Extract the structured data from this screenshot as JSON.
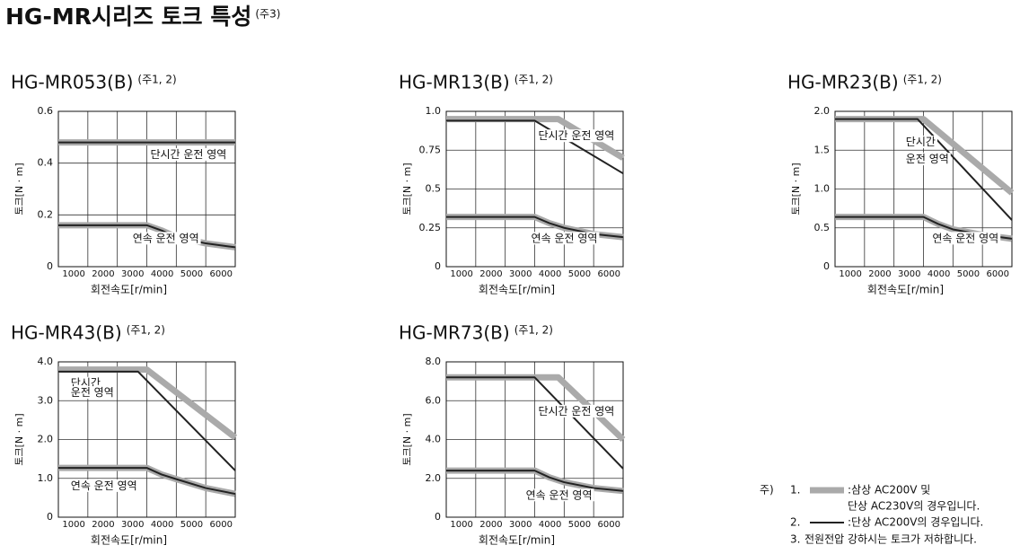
{
  "header": {
    "title": "HG-MR시리즈 토크 특성",
    "title_note": "(주3)"
  },
  "chart_data": [
    {
      "type": "line",
      "title": "HG-MR053(B)",
      "title_note": "(주1, 2)",
      "xlabel": "회전속도[r/min]",
      "ylabel": "토크[N · m]",
      "xlim": [
        0,
        6000
      ],
      "xticks": [
        1000,
        2000,
        3000,
        4000,
        5000,
        6000
      ],
      "ylim": [
        0,
        0.6
      ],
      "yticks": [
        0,
        0.2,
        0.4,
        0.6
      ],
      "grid": true,
      "annotations": [
        [
          "단시간 운전 영역"
        ],
        [
          "연속 운전 영역"
        ]
      ],
      "series": [
        {
          "color": "#aaaaaa",
          "width": 7,
          "x": [
            0,
            6000
          ],
          "values": [
            0.48,
            0.48
          ]
        },
        {
          "color": "#222222",
          "width": 2,
          "x": [
            0,
            6000
          ],
          "values": [
            0.48,
            0.48
          ]
        },
        {
          "color": "#aaaaaa",
          "width": 7,
          "x": [
            0,
            3000,
            3500,
            4000,
            5000,
            6000
          ],
          "values": [
            0.16,
            0.16,
            0.14,
            0.115,
            0.09,
            0.075
          ]
        },
        {
          "color": "#222222",
          "width": 2,
          "x": [
            0,
            3000,
            3500,
            4000,
            5000,
            6000
          ],
          "values": [
            0.16,
            0.16,
            0.14,
            0.115,
            0.09,
            0.075
          ]
        }
      ]
    },
    {
      "type": "line",
      "title": "HG-MR13(B)",
      "title_note": "(주1, 2)",
      "xlabel": "회전속도[r/min]",
      "ylabel": "토크[N · m]",
      "xlim": [
        0,
        6000
      ],
      "xticks": [
        1000,
        2000,
        3000,
        4000,
        5000,
        6000
      ],
      "ylim": [
        0,
        1
      ],
      "yticks": [
        0,
        0.25,
        0.5,
        0.75,
        {
          "value": 1,
          "label": "1.0"
        }
      ],
      "grid": true,
      "annotations": [
        [
          "단시간 운전 영역"
        ],
        [
          "연속 운전 영역"
        ]
      ],
      "series": [
        {
          "color": "#aaaaaa",
          "width": 7,
          "x": [
            0,
            3800,
            6000
          ],
          "values": [
            0.95,
            0.95,
            0.7
          ]
        },
        {
          "color": "#222222",
          "width": 2,
          "x": [
            0,
            3000,
            6000
          ],
          "values": [
            0.94,
            0.94,
            0.6
          ]
        },
        {
          "color": "#aaaaaa",
          "width": 7,
          "x": [
            0,
            3000,
            3500,
            4000,
            5000,
            6000
          ],
          "values": [
            0.32,
            0.32,
            0.28,
            0.25,
            0.21,
            0.19
          ]
        },
        {
          "color": "#222222",
          "width": 2,
          "x": [
            0,
            3000,
            3500,
            4000,
            5000,
            6000
          ],
          "values": [
            0.32,
            0.32,
            0.28,
            0.25,
            0.21,
            0.19
          ]
        }
      ]
    },
    {
      "type": "line",
      "title": "HG-MR23(B)",
      "title_note": "(주1, 2)",
      "xlabel": "회전속도[r/min]",
      "ylabel": "토크[N · m]",
      "xlim": [
        0,
        6000
      ],
      "xticks": [
        1000,
        2000,
        3000,
        4000,
        5000,
        6000
      ],
      "ylim": [
        0,
        2
      ],
      "yticks": [
        0,
        0.5,
        {
          "value": 1,
          "label": "1.0"
        },
        1.5,
        {
          "value": 2,
          "label": "2.0"
        }
      ],
      "grid": true,
      "annotations": [
        [
          "단시간",
          "운전 영역"
        ],
        [
          "연속 운전 영역"
        ]
      ],
      "series": [
        {
          "color": "#aaaaaa",
          "width": 7,
          "x": [
            0,
            3000,
            6000
          ],
          "values": [
            1.9,
            1.9,
            0.95
          ]
        },
        {
          "color": "#222222",
          "width": 2,
          "x": [
            0,
            2800,
            6000
          ],
          "values": [
            1.9,
            1.9,
            0.6
          ]
        },
        {
          "color": "#aaaaaa",
          "width": 7,
          "x": [
            0,
            3000,
            3500,
            4000,
            5000,
            6000
          ],
          "values": [
            0.64,
            0.64,
            0.55,
            0.48,
            0.41,
            0.36
          ]
        },
        {
          "color": "#222222",
          "width": 2,
          "x": [
            0,
            3000,
            3500,
            4000,
            5000,
            6000
          ],
          "values": [
            0.64,
            0.64,
            0.55,
            0.48,
            0.41,
            0.36
          ]
        }
      ]
    },
    {
      "type": "line",
      "title": "HG-MR43(B)",
      "title_note": "(주1, 2)",
      "xlabel": "회전속도[r/min]",
      "ylabel": "토크[N · m]",
      "xlim": [
        0,
        6000
      ],
      "xticks": [
        1000,
        2000,
        3000,
        4000,
        5000,
        6000
      ],
      "ylim": [
        0,
        4
      ],
      "yticks": [
        0,
        {
          "value": 1,
          "label": "1.0"
        },
        {
          "value": 2,
          "label": "2.0"
        },
        {
          "value": 3,
          "label": "3.0"
        },
        {
          "value": 4,
          "label": "4.0"
        }
      ],
      "grid": true,
      "annotations": [
        [
          "단시간",
          "운전 영역"
        ],
        [
          "연속 운전 영역"
        ]
      ],
      "series": [
        {
          "color": "#aaaaaa",
          "width": 7,
          "x": [
            0,
            3000,
            6000
          ],
          "values": [
            3.8,
            3.8,
            2.05
          ]
        },
        {
          "color": "#222222",
          "width": 2,
          "x": [
            0,
            2700,
            6000
          ],
          "values": [
            3.75,
            3.75,
            1.2
          ]
        },
        {
          "color": "#aaaaaa",
          "width": 7,
          "x": [
            0,
            3000,
            3500,
            4000,
            5000,
            6000
          ],
          "values": [
            1.27,
            1.27,
            1.1,
            0.98,
            0.75,
            0.6
          ]
        },
        {
          "color": "#222222",
          "width": 2,
          "x": [
            0,
            3000,
            3500,
            4000,
            5000,
            6000
          ],
          "values": [
            1.27,
            1.27,
            1.1,
            0.98,
            0.75,
            0.6
          ]
        }
      ]
    },
    {
      "type": "line",
      "title": "HG-MR73(B)",
      "title_note": "(주1, 2)",
      "xlabel": "회전속도[r/min]",
      "ylabel": "토크[N · m]",
      "xlim": [
        0,
        6000
      ],
      "xticks": [
        1000,
        2000,
        3000,
        4000,
        5000,
        6000
      ],
      "ylim": [
        0,
        8
      ],
      "yticks": [
        0,
        {
          "value": 2,
          "label": "2.0"
        },
        {
          "value": 4,
          "label": "4.0"
        },
        {
          "value": 6,
          "label": "6.0"
        },
        {
          "value": 8,
          "label": "8.0"
        }
      ],
      "grid": true,
      "annotations": [
        [
          "단시간 운전 영역"
        ],
        [
          "연속 운전 영역"
        ]
      ],
      "series": [
        {
          "color": "#aaaaaa",
          "width": 7,
          "x": [
            0,
            3800,
            6000
          ],
          "values": [
            7.2,
            7.2,
            4.0
          ]
        },
        {
          "color": "#222222",
          "width": 2,
          "x": [
            0,
            3000,
            6000
          ],
          "values": [
            7.2,
            7.2,
            2.5
          ]
        },
        {
          "color": "#aaaaaa",
          "width": 7,
          "x": [
            0,
            3000,
            3500,
            4000,
            5000,
            6000
          ],
          "values": [
            2.4,
            2.4,
            2.05,
            1.8,
            1.5,
            1.35
          ]
        },
        {
          "color": "#222222",
          "width": 2,
          "x": [
            0,
            3000,
            3500,
            4000,
            5000,
            6000
          ],
          "values": [
            2.4,
            2.4,
            2.05,
            1.8,
            1.5,
            1.35
          ]
        }
      ]
    }
  ],
  "notes": {
    "prefix": "주)",
    "items": [
      {
        "number": "1.",
        "lines": [
          ":삼상 AC200V 및",
          "단상 AC230V의 경우입니다."
        ]
      },
      {
        "number": "2.",
        "lines": [
          ":단상 AC200V의 경우입니다."
        ]
      },
      {
        "number": "3.",
        "lines": [
          "전원전압 강하시는 토크가 저하합니다."
        ]
      }
    ]
  }
}
